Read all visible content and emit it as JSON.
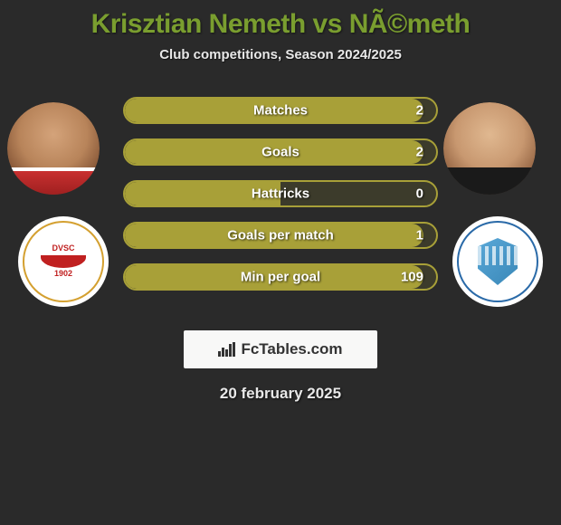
{
  "header": {
    "title": "Krisztian Nemeth vs NÃ©meth",
    "title_color": "#7a9e2f",
    "title_fontsize": 30,
    "subtitle": "Club competitions, Season 2024/2025",
    "subtitle_color": "#e8e8e8",
    "subtitle_fontsize": 15
  },
  "background_color": "#2a2a2a",
  "players": {
    "left": {
      "name": "Krisztian Nemeth",
      "club": "DVSC",
      "club_year": "1902"
    },
    "right": {
      "name": "NÃ©meth",
      "club": "MTK Budapest"
    }
  },
  "stats": {
    "bar_border_color": "#a8a038",
    "bar_fill_color": "#a8a038",
    "label_color": "#ffffff",
    "label_fontsize": 15,
    "rows": [
      {
        "label": "Matches",
        "value": "2",
        "fill_percent": 96
      },
      {
        "label": "Goals",
        "value": "2",
        "fill_percent": 96
      },
      {
        "label": "Hattricks",
        "value": "0",
        "fill_percent": 50
      },
      {
        "label": "Goals per match",
        "value": "1",
        "fill_percent": 96
      },
      {
        "label": "Min per goal",
        "value": "109",
        "fill_percent": 96
      }
    ]
  },
  "brand": {
    "text": "FcTables.com",
    "text_color": "#333333",
    "box_bg": "#f8f8f7",
    "icon": "bar-chart-icon"
  },
  "date": {
    "text": "20 february 2025",
    "color": "#e8e8e8",
    "fontsize": 17
  }
}
